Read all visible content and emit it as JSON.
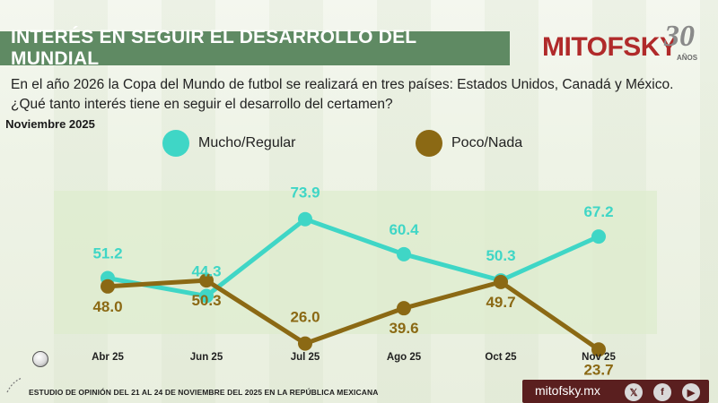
{
  "header": {
    "title": "INTERÉS EN SEGUIR EL DESARROLLO DEL MUNDIAL",
    "logo_text": "MITOFSKY",
    "logo_30": "30",
    "logo_anos": "AÑOS"
  },
  "question": "En el año 2026 la Copa del Mundo de futbol se realizará en tres países:  Estados Unidos, Canadá y México. ¿Qué tanto interés tiene en seguir el desarrollo del certamen?",
  "period": "Noviembre 2025",
  "footer": {
    "study_text": "ESTUDIO DE OPINIÓN DEL 21 AL 24 DE NOVIEMBRE DEL 2025 EN LA REPÚBLICA MEXICANA",
    "url": "mitofsky.mx"
  },
  "colors": {
    "title_bg": "#5f8a63",
    "series_mucho": "#3fd6c6",
    "series_poco": "#8b6914",
    "footer_bg": "#5a1f1f",
    "logo_red": "#b02a2a"
  },
  "icons": [
    "soccer-ball-icon",
    "x-icon",
    "facebook-icon",
    "youtube-icon"
  ],
  "chart_data": {
    "type": "line",
    "categories": [
      "Abr 25",
      "Jun 25",
      "Jul 25",
      "Ago 25",
      "Oct 25",
      "Nov 25"
    ],
    "series": [
      {
        "name": "Mucho/Regular",
        "values": [
          51.2,
          44.3,
          73.9,
          60.4,
          50.3,
          67.2
        ],
        "color": "#3fd6c6"
      },
      {
        "name": "Poco/Nada",
        "values": [
          48.0,
          50.3,
          26.0,
          39.6,
          49.7,
          23.7
        ],
        "color": "#8b6914"
      }
    ],
    "title": "",
    "xlabel": "",
    "ylabel": "",
    "grid": false,
    "legend": "top"
  }
}
